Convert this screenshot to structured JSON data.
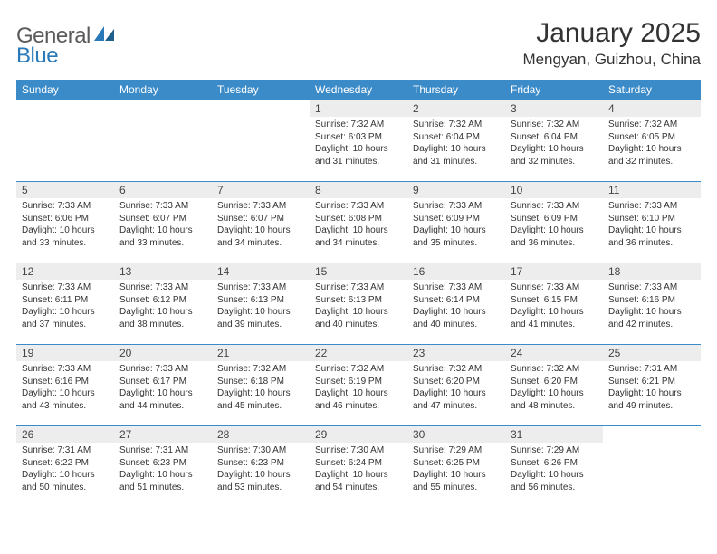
{
  "brand": {
    "name_gray": "General",
    "name_blue": "Blue"
  },
  "title": "January 2025",
  "location": "Mengyan, Guizhou, China",
  "colors": {
    "header_bg": "#3b8bc9",
    "header_text": "#ffffff",
    "daynum_bg": "#ededed",
    "row_border": "#3b8bc9",
    "logo_gray": "#5a5a5a",
    "logo_blue": "#2a7ab9",
    "body_text": "#333333",
    "page_bg": "#ffffff"
  },
  "day_headers": [
    "Sunday",
    "Monday",
    "Tuesday",
    "Wednesday",
    "Thursday",
    "Friday",
    "Saturday"
  ],
  "weeks": [
    [
      null,
      null,
      null,
      {
        "n": "1",
        "sr": "Sunrise: 7:32 AM",
        "ss": "Sunset: 6:03 PM",
        "dl1": "Daylight: 10 hours",
        "dl2": "and 31 minutes."
      },
      {
        "n": "2",
        "sr": "Sunrise: 7:32 AM",
        "ss": "Sunset: 6:04 PM",
        "dl1": "Daylight: 10 hours",
        "dl2": "and 31 minutes."
      },
      {
        "n": "3",
        "sr": "Sunrise: 7:32 AM",
        "ss": "Sunset: 6:04 PM",
        "dl1": "Daylight: 10 hours",
        "dl2": "and 32 minutes."
      },
      {
        "n": "4",
        "sr": "Sunrise: 7:32 AM",
        "ss": "Sunset: 6:05 PM",
        "dl1": "Daylight: 10 hours",
        "dl2": "and 32 minutes."
      }
    ],
    [
      {
        "n": "5",
        "sr": "Sunrise: 7:33 AM",
        "ss": "Sunset: 6:06 PM",
        "dl1": "Daylight: 10 hours",
        "dl2": "and 33 minutes."
      },
      {
        "n": "6",
        "sr": "Sunrise: 7:33 AM",
        "ss": "Sunset: 6:07 PM",
        "dl1": "Daylight: 10 hours",
        "dl2": "and 33 minutes."
      },
      {
        "n": "7",
        "sr": "Sunrise: 7:33 AM",
        "ss": "Sunset: 6:07 PM",
        "dl1": "Daylight: 10 hours",
        "dl2": "and 34 minutes."
      },
      {
        "n": "8",
        "sr": "Sunrise: 7:33 AM",
        "ss": "Sunset: 6:08 PM",
        "dl1": "Daylight: 10 hours",
        "dl2": "and 34 minutes."
      },
      {
        "n": "9",
        "sr": "Sunrise: 7:33 AM",
        "ss": "Sunset: 6:09 PM",
        "dl1": "Daylight: 10 hours",
        "dl2": "and 35 minutes."
      },
      {
        "n": "10",
        "sr": "Sunrise: 7:33 AM",
        "ss": "Sunset: 6:09 PM",
        "dl1": "Daylight: 10 hours",
        "dl2": "and 36 minutes."
      },
      {
        "n": "11",
        "sr": "Sunrise: 7:33 AM",
        "ss": "Sunset: 6:10 PM",
        "dl1": "Daylight: 10 hours",
        "dl2": "and 36 minutes."
      }
    ],
    [
      {
        "n": "12",
        "sr": "Sunrise: 7:33 AM",
        "ss": "Sunset: 6:11 PM",
        "dl1": "Daylight: 10 hours",
        "dl2": "and 37 minutes."
      },
      {
        "n": "13",
        "sr": "Sunrise: 7:33 AM",
        "ss": "Sunset: 6:12 PM",
        "dl1": "Daylight: 10 hours",
        "dl2": "and 38 minutes."
      },
      {
        "n": "14",
        "sr": "Sunrise: 7:33 AM",
        "ss": "Sunset: 6:13 PM",
        "dl1": "Daylight: 10 hours",
        "dl2": "and 39 minutes."
      },
      {
        "n": "15",
        "sr": "Sunrise: 7:33 AM",
        "ss": "Sunset: 6:13 PM",
        "dl1": "Daylight: 10 hours",
        "dl2": "and 40 minutes."
      },
      {
        "n": "16",
        "sr": "Sunrise: 7:33 AM",
        "ss": "Sunset: 6:14 PM",
        "dl1": "Daylight: 10 hours",
        "dl2": "and 40 minutes."
      },
      {
        "n": "17",
        "sr": "Sunrise: 7:33 AM",
        "ss": "Sunset: 6:15 PM",
        "dl1": "Daylight: 10 hours",
        "dl2": "and 41 minutes."
      },
      {
        "n": "18",
        "sr": "Sunrise: 7:33 AM",
        "ss": "Sunset: 6:16 PM",
        "dl1": "Daylight: 10 hours",
        "dl2": "and 42 minutes."
      }
    ],
    [
      {
        "n": "19",
        "sr": "Sunrise: 7:33 AM",
        "ss": "Sunset: 6:16 PM",
        "dl1": "Daylight: 10 hours",
        "dl2": "and 43 minutes."
      },
      {
        "n": "20",
        "sr": "Sunrise: 7:33 AM",
        "ss": "Sunset: 6:17 PM",
        "dl1": "Daylight: 10 hours",
        "dl2": "and 44 minutes."
      },
      {
        "n": "21",
        "sr": "Sunrise: 7:32 AM",
        "ss": "Sunset: 6:18 PM",
        "dl1": "Daylight: 10 hours",
        "dl2": "and 45 minutes."
      },
      {
        "n": "22",
        "sr": "Sunrise: 7:32 AM",
        "ss": "Sunset: 6:19 PM",
        "dl1": "Daylight: 10 hours",
        "dl2": "and 46 minutes."
      },
      {
        "n": "23",
        "sr": "Sunrise: 7:32 AM",
        "ss": "Sunset: 6:20 PM",
        "dl1": "Daylight: 10 hours",
        "dl2": "and 47 minutes."
      },
      {
        "n": "24",
        "sr": "Sunrise: 7:32 AM",
        "ss": "Sunset: 6:20 PM",
        "dl1": "Daylight: 10 hours",
        "dl2": "and 48 minutes."
      },
      {
        "n": "25",
        "sr": "Sunrise: 7:31 AM",
        "ss": "Sunset: 6:21 PM",
        "dl1": "Daylight: 10 hours",
        "dl2": "and 49 minutes."
      }
    ],
    [
      {
        "n": "26",
        "sr": "Sunrise: 7:31 AM",
        "ss": "Sunset: 6:22 PM",
        "dl1": "Daylight: 10 hours",
        "dl2": "and 50 minutes."
      },
      {
        "n": "27",
        "sr": "Sunrise: 7:31 AM",
        "ss": "Sunset: 6:23 PM",
        "dl1": "Daylight: 10 hours",
        "dl2": "and 51 minutes."
      },
      {
        "n": "28",
        "sr": "Sunrise: 7:30 AM",
        "ss": "Sunset: 6:23 PM",
        "dl1": "Daylight: 10 hours",
        "dl2": "and 53 minutes."
      },
      {
        "n": "29",
        "sr": "Sunrise: 7:30 AM",
        "ss": "Sunset: 6:24 PM",
        "dl1": "Daylight: 10 hours",
        "dl2": "and 54 minutes."
      },
      {
        "n": "30",
        "sr": "Sunrise: 7:29 AM",
        "ss": "Sunset: 6:25 PM",
        "dl1": "Daylight: 10 hours",
        "dl2": "and 55 minutes."
      },
      {
        "n": "31",
        "sr": "Sunrise: 7:29 AM",
        "ss": "Sunset: 6:26 PM",
        "dl1": "Daylight: 10 hours",
        "dl2": "and 56 minutes."
      },
      null
    ]
  ]
}
